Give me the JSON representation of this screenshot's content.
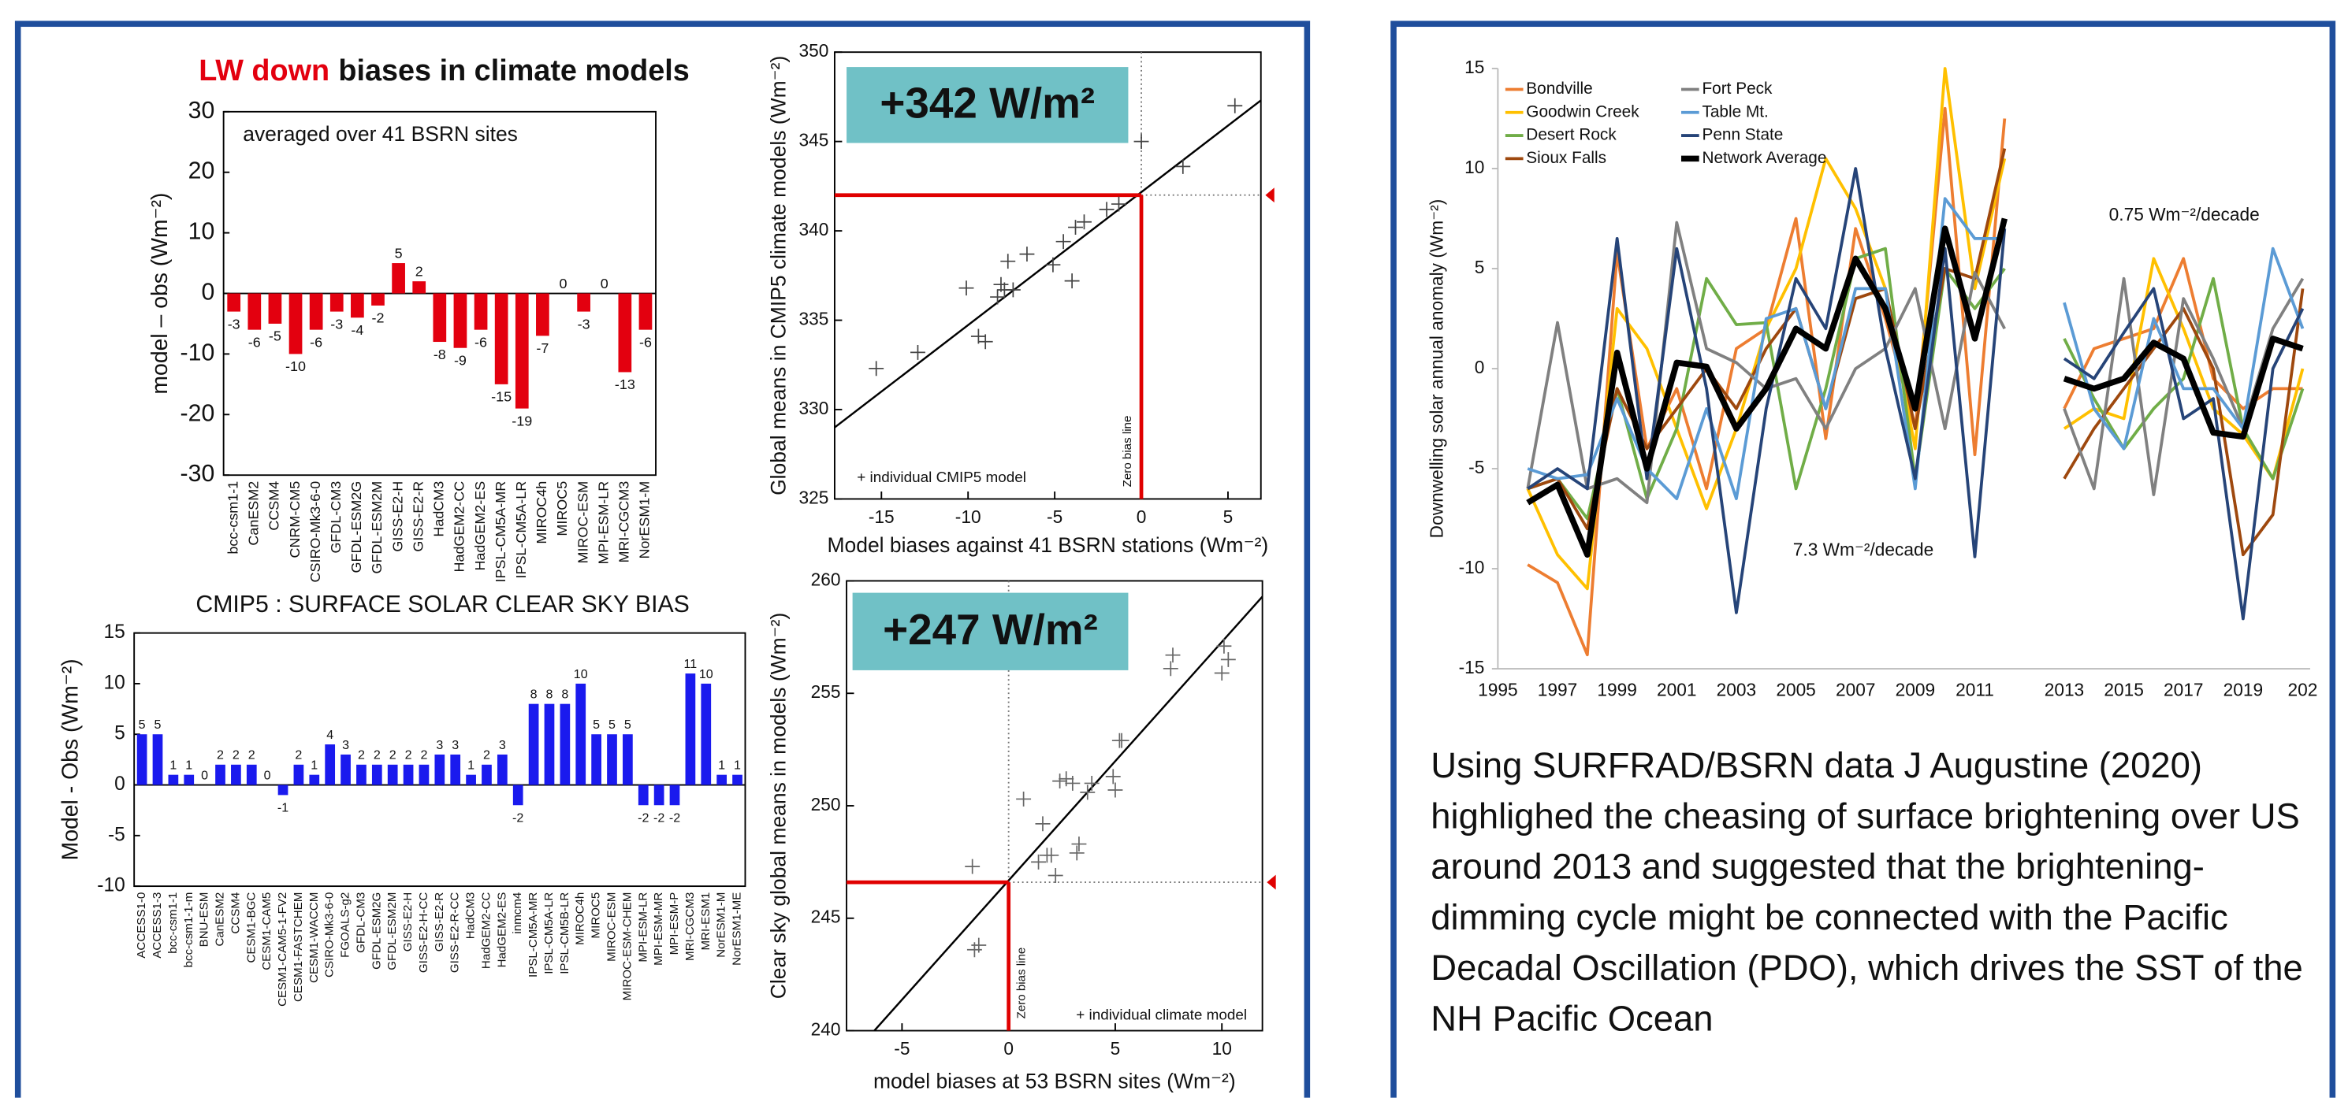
{
  "chart_data": [
    {
      "type": "bar",
      "title_highlight": "LW down",
      "title": "biases in climate models",
      "annotation": "averaged over 41 BSRN sites",
      "ylabel": "model – obs (Wm⁻²)",
      "categories": [
        "bcc-csm1-1",
        "CanESM2",
        "CCSM4",
        "CNRM-CM5",
        "CSIRO-Mk3-6-0",
        "GFDL-CM3",
        "GFDL-ESM2G",
        "GFDL-ESM2M",
        "GISS-E2-H",
        "GISS-E2-R",
        "HadCM3",
        "HadGEM2-CC",
        "HadGEM2-ES",
        "IPSL-CM5A-MR",
        "IPSL-CM5A-LR",
        "MIROC4h",
        "MIROC5",
        "MIROC-ESM",
        "MPI-ESM-LR",
        "MRI-CGCM3",
        "NorESM1-M"
      ],
      "values": [
        -3,
        -6,
        -5,
        -10,
        -6,
        -3,
        -4,
        -2,
        5,
        2,
        -8,
        -9,
        -6,
        -15,
        -19,
        -7,
        0,
        -3,
        0,
        -13,
        -6
      ],
      "color": "#e3000f",
      "title_highlight_color": "#e3000f",
      "ylim": [
        -30,
        30
      ],
      "yticks": [
        -30,
        -20,
        -10,
        0,
        10,
        20,
        30
      ]
    },
    {
      "type": "scatter",
      "callout": "+342 W/m²",
      "xlabel": "Model biases against 41 BSRN stations (Wm⁻²)",
      "ylabel": "Global means in CMIP5 climate models (Wm⁻²)",
      "legend_text": "+ individual CMIP5 model",
      "zero_line_label": "Zero bias line",
      "x": [
        -15.3,
        -12.9,
        -10.1,
        -9.4,
        -9,
        -8.3,
        -8.1,
        -7.9,
        -7.7,
        -7.4,
        -6.6,
        -5.1,
        -4.5,
        -4,
        -3.8,
        -3.3,
        -2,
        -1.3,
        0,
        2.4,
        5.4
      ],
      "values": [
        332.3,
        333.2,
        336.8,
        334.1,
        333.8,
        336.3,
        337,
        336.7,
        338.3,
        336.7,
        338.7,
        338.1,
        339.4,
        337.2,
        340.2,
        340.5,
        341.2,
        341.5,
        345,
        343.6,
        347
      ],
      "fit_x": [
        -17.7,
        6.9
      ],
      "fit_y": [
        329,
        347.3
      ],
      "highlight_x": 0,
      "highlight_y": 342,
      "xlim": [
        -17.7,
        6.9
      ],
      "ylim": [
        325,
        350
      ],
      "xticks": [
        -15,
        -10,
        -5,
        0,
        5
      ],
      "yticks": [
        325,
        330,
        335,
        340,
        345,
        350
      ],
      "color": "#444444",
      "highlight_color": "#e00000",
      "callout_color": "#70c1c6",
      "callout_text_color": "#e8141b"
    },
    {
      "type": "bar",
      "title": "CMIP5 : SURFACE SOLAR CLEAR SKY BIAS",
      "ylabel": "Model - Obs (Wm⁻²)",
      "categories": [
        "ACCESS1-0",
        "ACCESS1-3",
        "bcc-csm1-1",
        "bcc-csm1-1-m",
        "BNU-ESM",
        "CanESM2",
        "CCSM4",
        "CESM1-BGC",
        "CESM1-CAM5",
        "CESM1-CAM5-1-FV2",
        "CESM1-FASTCHEM",
        "CESM1-WACCM",
        "CSIRO-Mk3-6-0",
        "FGOALS-g2",
        "GFDL-CM3",
        "GFDL-ESM2G",
        "GFDL-ESM2M",
        "GISS-E2-H",
        "GISS-E2-H-CC",
        "GISS-E2-R",
        "GISS-E2-R-CC",
        "HadCM3",
        "HadGEM2-CC",
        "HadGEM2-ES",
        "inmcm4",
        "IPSL-CM5A-MR",
        "IPSL-CM5A-LR",
        "IPSL-CM5B-LR",
        "MIROC4h",
        "MIROC5",
        "MIROC-ESM",
        "MIROC-ESM-CHEM",
        "MPI-ESM-LR",
        "MPI-ESM-MR",
        "MPI-ESM-P",
        "MRI-CGCM3",
        "MRI-ESM1",
        "NorESM1-M",
        "NorESM1-ME"
      ],
      "values": [
        5,
        5,
        1,
        1,
        0,
        2,
        2,
        2,
        0,
        -1,
        2,
        1,
        4,
        3,
        2,
        2,
        2,
        2,
        2,
        3,
        3,
        1,
        2,
        3,
        -2,
        8,
        8,
        8,
        10,
        5,
        5,
        5,
        -2,
        -2,
        -2,
        11,
        10,
        1,
        1
      ],
      "color": "#1a1aee",
      "ylim": [
        -10,
        15
      ],
      "yticks": [
        -10,
        -5,
        0,
        5,
        10,
        15
      ]
    },
    {
      "type": "scatter",
      "callout": "+247 W/m²",
      "xlabel": "model biases at 53 BSRN sites (Wm⁻²)",
      "ylabel": "Clear sky global means in models (Wm⁻²)",
      "legend_text": "+ individual climate model",
      "zero_line_label": "Zero bias line",
      "x": [
        -1.7,
        -1.6,
        -1.4,
        0.7,
        1.4,
        1.6,
        1.8,
        2,
        2.2,
        2.4,
        2.7,
        3,
        3.2,
        3.3,
        3.7,
        3.9,
        4.9,
        5,
        5.2,
        5.3,
        7.6,
        7.7,
        10,
        10.3,
        10.1
      ],
      "values": [
        247.3,
        243.6,
        243.8,
        250.3,
        247.5,
        249.2,
        247.8,
        247.8,
        246.9,
        251.1,
        251.2,
        251,
        247.9,
        248.3,
        250.6,
        251,
        251.3,
        250.7,
        252.9,
        252.9,
        256.1,
        256.7,
        255.9,
        256.5,
        257.1
      ],
      "fit_x": [
        -6.3,
        11.9
      ],
      "fit_y": [
        240,
        259.3
      ],
      "highlight_x": 0,
      "highlight_y": 246.6,
      "xlim": [
        -7.6,
        11.9
      ],
      "ylim": [
        240,
        260
      ],
      "xticks": [
        -5,
        0,
        5,
        10
      ],
      "yticks": [
        240,
        245,
        250,
        255,
        260
      ],
      "color": "#666666",
      "highlight_color": "#e00000",
      "callout_color": "#70c1c6",
      "callout_text_color": "#e8141b"
    },
    {
      "type": "line",
      "ylabel": "Downwelling solar annual anomaly (Wm⁻²)",
      "legend": "upper-left",
      "categories": [
        "1995",
        null,
        "1997",
        null,
        "1999",
        null,
        "2001",
        null,
        "2003",
        null,
        "2005",
        null,
        "2007",
        null,
        "2009",
        null,
        "2011",
        null,
        null,
        "2013",
        null,
        "2015",
        null,
        "2017",
        null,
        "2019",
        null,
        "202"
      ],
      "series": [
        {
          "name": "Bondville",
          "color": "#ed7d31",
          "values": [
            null,
            -9.8,
            -10.7,
            -14.3,
            5.8,
            -4,
            -1,
            -6,
            1,
            2,
            7.5,
            -3.5,
            7,
            2.5,
            -3,
            13,
            -4.3,
            12.5,
            null,
            -2,
            1,
            1.5,
            2,
            5.5,
            -0.5,
            -2,
            -1,
            -1
          ]
        },
        {
          "name": "Goodwin Creek",
          "color": "#ffc000",
          "values": [
            null,
            -6,
            -9.3,
            -11,
            3,
            1,
            -3,
            -7,
            -3,
            2,
            5,
            10.5,
            8,
            4,
            -4,
            15,
            4,
            10.5,
            null,
            -3,
            -2,
            -2.5,
            5.5,
            2,
            -2,
            -3.3,
            -5.5,
            0
          ]
        },
        {
          "name": "Desert Rock",
          "color": "#70ad47",
          "values": [
            null,
            -6,
            -5.5,
            -7.5,
            -1,
            -6.5,
            -3,
            4.5,
            2.2,
            2.3,
            -6,
            -1,
            5.5,
            6,
            -5.5,
            5,
            3,
            5,
            null,
            1.5,
            -1.5,
            -4,
            -2,
            -0.5,
            4.5,
            -3,
            -5.5,
            -1
          ]
        },
        {
          "name": "Sioux Falls",
          "color": "#9e480e",
          "values": [
            null,
            -6,
            -5.5,
            -8,
            -1,
            -4,
            -2,
            0,
            -2,
            1,
            3,
            -2,
            3.5,
            4,
            -3,
            5,
            4.5,
            11,
            null,
            -5.5,
            -3,
            -1,
            1,
            3,
            0,
            -9.3,
            -7.3,
            4
          ]
        },
        {
          "name": "Fort Peck",
          "color": "#808080",
          "values": [
            null,
            -6,
            2.3,
            -6,
            -5.5,
            -6.7,
            7.3,
            1,
            0.3,
            -1,
            -0.5,
            -3,
            0,
            1,
            4,
            -3,
            4.8,
            2,
            null,
            -2,
            -6,
            4.5,
            -6.3,
            3.5,
            0.5,
            -3,
            2,
            4.5
          ]
        },
        {
          "name": "Table Mt.",
          "color": "#5b9bd5",
          "values": [
            null,
            -5,
            -5.5,
            -5.3,
            -1.5,
            -5,
            -6.5,
            -2,
            -6.5,
            2.5,
            3,
            -2,
            4,
            4,
            -6,
            8.5,
            6.5,
            6.5,
            null,
            3.3,
            -2,
            -4,
            2.5,
            -1,
            -1,
            -3,
            6,
            2
          ]
        },
        {
          "name": "Penn State",
          "color": "#264478",
          "values": [
            null,
            -6,
            -5,
            -6,
            6.5,
            -5.5,
            6,
            -1,
            -12.2,
            -2,
            4.5,
            2,
            10,
            1,
            -5.5,
            6,
            -9.4,
            7,
            null,
            0.5,
            -0.5,
            1.8,
            4,
            -2.5,
            -1.5,
            -12.5,
            0,
            3
          ]
        },
        {
          "name": "Network Average",
          "color": "#000000",
          "width": 4,
          "values": [
            null,
            -6.7,
            -5.8,
            -9.3,
            0.8,
            -5,
            0.3,
            0.1,
            -3,
            -1,
            2,
            1,
            5.5,
            3,
            -2,
            7,
            1.5,
            7.5,
            null,
            -0.5,
            -1,
            -0.5,
            1.3,
            0.5,
            -3.2,
            -3.4,
            1.5,
            1
          ]
        }
      ],
      "trends": [
        {
          "label": "7.3 Wm⁻²/decade",
          "values": [
            null,
            -6.2,
            null,
            null,
            null,
            null,
            null,
            null,
            null,
            null,
            null,
            null,
            null,
            null,
            null,
            null,
            null,
            5.6,
            null,
            null,
            null,
            null,
            null,
            null,
            null,
            null,
            null,
            null
          ]
        },
        {
          "label": "0.75 Wm⁻²/decade",
          "values": [
            null,
            null,
            null,
            null,
            null,
            null,
            null,
            null,
            null,
            null,
            null,
            null,
            null,
            null,
            null,
            null,
            null,
            null,
            null,
            -1.2,
            null,
            null,
            null,
            null,
            null,
            null,
            null,
            -0.3
          ]
        }
      ],
      "ylim": [
        -15,
        15
      ],
      "yticks": [
        -15,
        -10,
        -5,
        0,
        5,
        10,
        15
      ]
    }
  ],
  "text": {
    "paragraph": "Using SURFRAD/BSRN data J Augustine (2020) highlighed the cheasing of surface brightening over US around 2013 and suggested that the brightening-dimming cycle might be connected with the Pacific Decadal Oscillation (PDO), which drives the SST of the NH Pacific Ocean"
  }
}
